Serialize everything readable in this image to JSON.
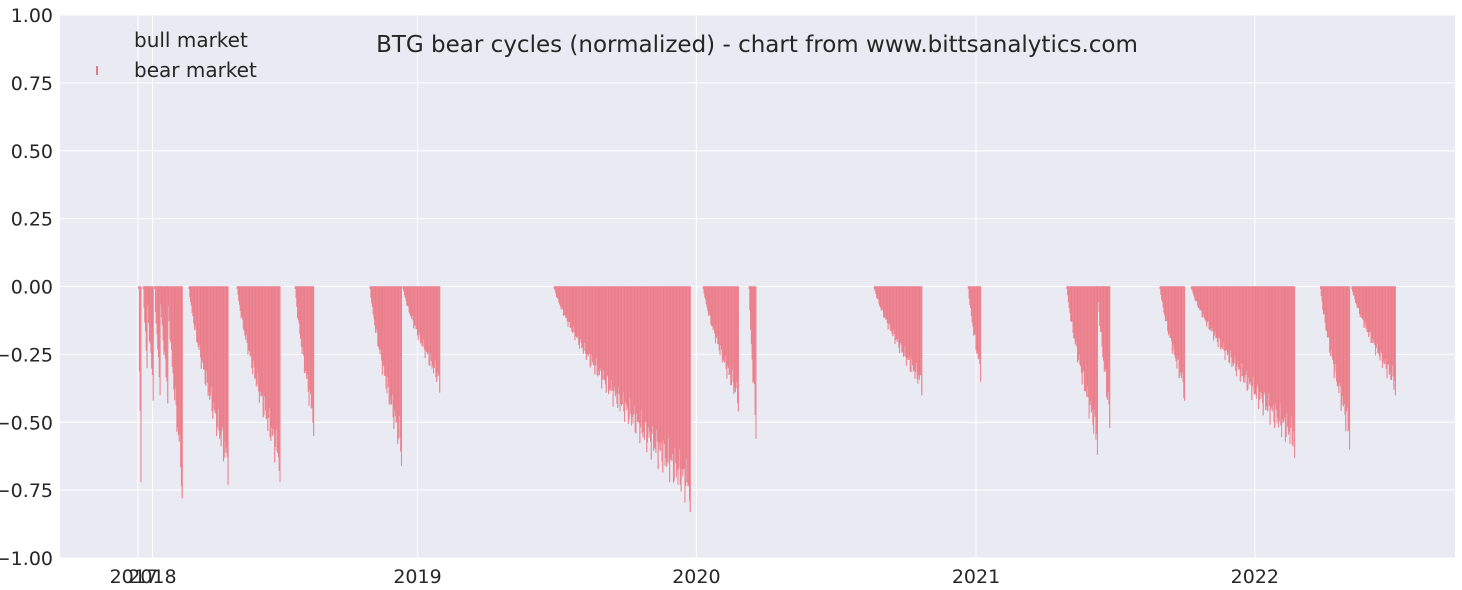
{
  "chart_data": {
    "type": "bar",
    "title": "BTG bear cycles (normalized)  - chart from www.bittsanalytics.com",
    "xlabel": "",
    "ylabel": "",
    "ylim": [
      -1.0,
      1.0
    ],
    "xlim": [
      "2017-09-20",
      "2022-09-20"
    ],
    "grid": true,
    "legend_position": "top-left",
    "y_ticks": [
      "1.00",
      "0.75",
      "0.50",
      "0.25",
      "0.00",
      "−0.25",
      "−0.50",
      "−0.75",
      "−1.00"
    ],
    "x_ticks": [
      {
        "label": "2017",
        "date": "2017-12-31"
      },
      {
        "label": "2018",
        "date": "2018-01-19"
      },
      {
        "label": "2019",
        "date": "2019-01-01"
      },
      {
        "label": "2020",
        "date": "2020-01-01"
      },
      {
        "label": "2021",
        "date": "2021-01-01"
      },
      {
        "label": "2022",
        "date": "2022-01-01"
      }
    ],
    "colors": {
      "background": "#eaeaf2",
      "grid": "#ffffff",
      "bear": "#f7929e",
      "bear_edge": "#e0707e"
    },
    "series": [
      {
        "name": "bull market",
        "values": []
      },
      {
        "name": "bear market",
        "episodes": [
          {
            "start": "2018-01-01",
            "end": "2018-01-04",
            "min": -0.72
          },
          {
            "start": "2018-01-07",
            "end": "2018-01-12",
            "min": -0.3
          },
          {
            "start": "2018-01-12",
            "end": "2018-01-20",
            "min": -0.42
          },
          {
            "start": "2018-01-22",
            "end": "2018-01-29",
            "min": -0.4
          },
          {
            "start": "2018-01-29",
            "end": "2018-02-08",
            "min": -0.43
          },
          {
            "start": "2018-02-08",
            "end": "2018-02-27",
            "min": -0.78
          },
          {
            "start": "2018-03-08",
            "end": "2018-04-28",
            "min": -0.73
          },
          {
            "start": "2018-05-10",
            "end": "2018-07-05",
            "min": -0.72
          },
          {
            "start": "2018-07-25",
            "end": "2018-08-18",
            "min": -0.55
          },
          {
            "start": "2018-10-31",
            "end": "2018-12-11",
            "min": -0.66
          },
          {
            "start": "2018-12-13",
            "end": "2019-01-30",
            "min": -0.39
          },
          {
            "start": "2019-06-29",
            "end": "2019-12-24",
            "min": -0.83
          },
          {
            "start": "2020-01-10",
            "end": "2020-02-25",
            "min": -0.46
          },
          {
            "start": "2020-03-10",
            "end": "2020-03-19",
            "min": -0.56
          },
          {
            "start": "2020-08-21",
            "end": "2020-10-22",
            "min": -0.4
          },
          {
            "start": "2020-12-22",
            "end": "2021-01-07",
            "min": -0.35
          },
          {
            "start": "2021-04-30",
            "end": "2021-06-09",
            "min": -0.62
          },
          {
            "start": "2021-06-09",
            "end": "2021-06-25",
            "min": -0.52
          },
          {
            "start": "2021-08-30",
            "end": "2021-10-01",
            "min": -0.42
          },
          {
            "start": "2021-10-10",
            "end": "2022-02-22",
            "min": -0.63
          },
          {
            "start": "2022-03-28",
            "end": "2022-05-05",
            "min": -0.6
          },
          {
            "start": "2022-05-08",
            "end": "2022-07-04",
            "min": -0.4
          }
        ]
      }
    ]
  }
}
